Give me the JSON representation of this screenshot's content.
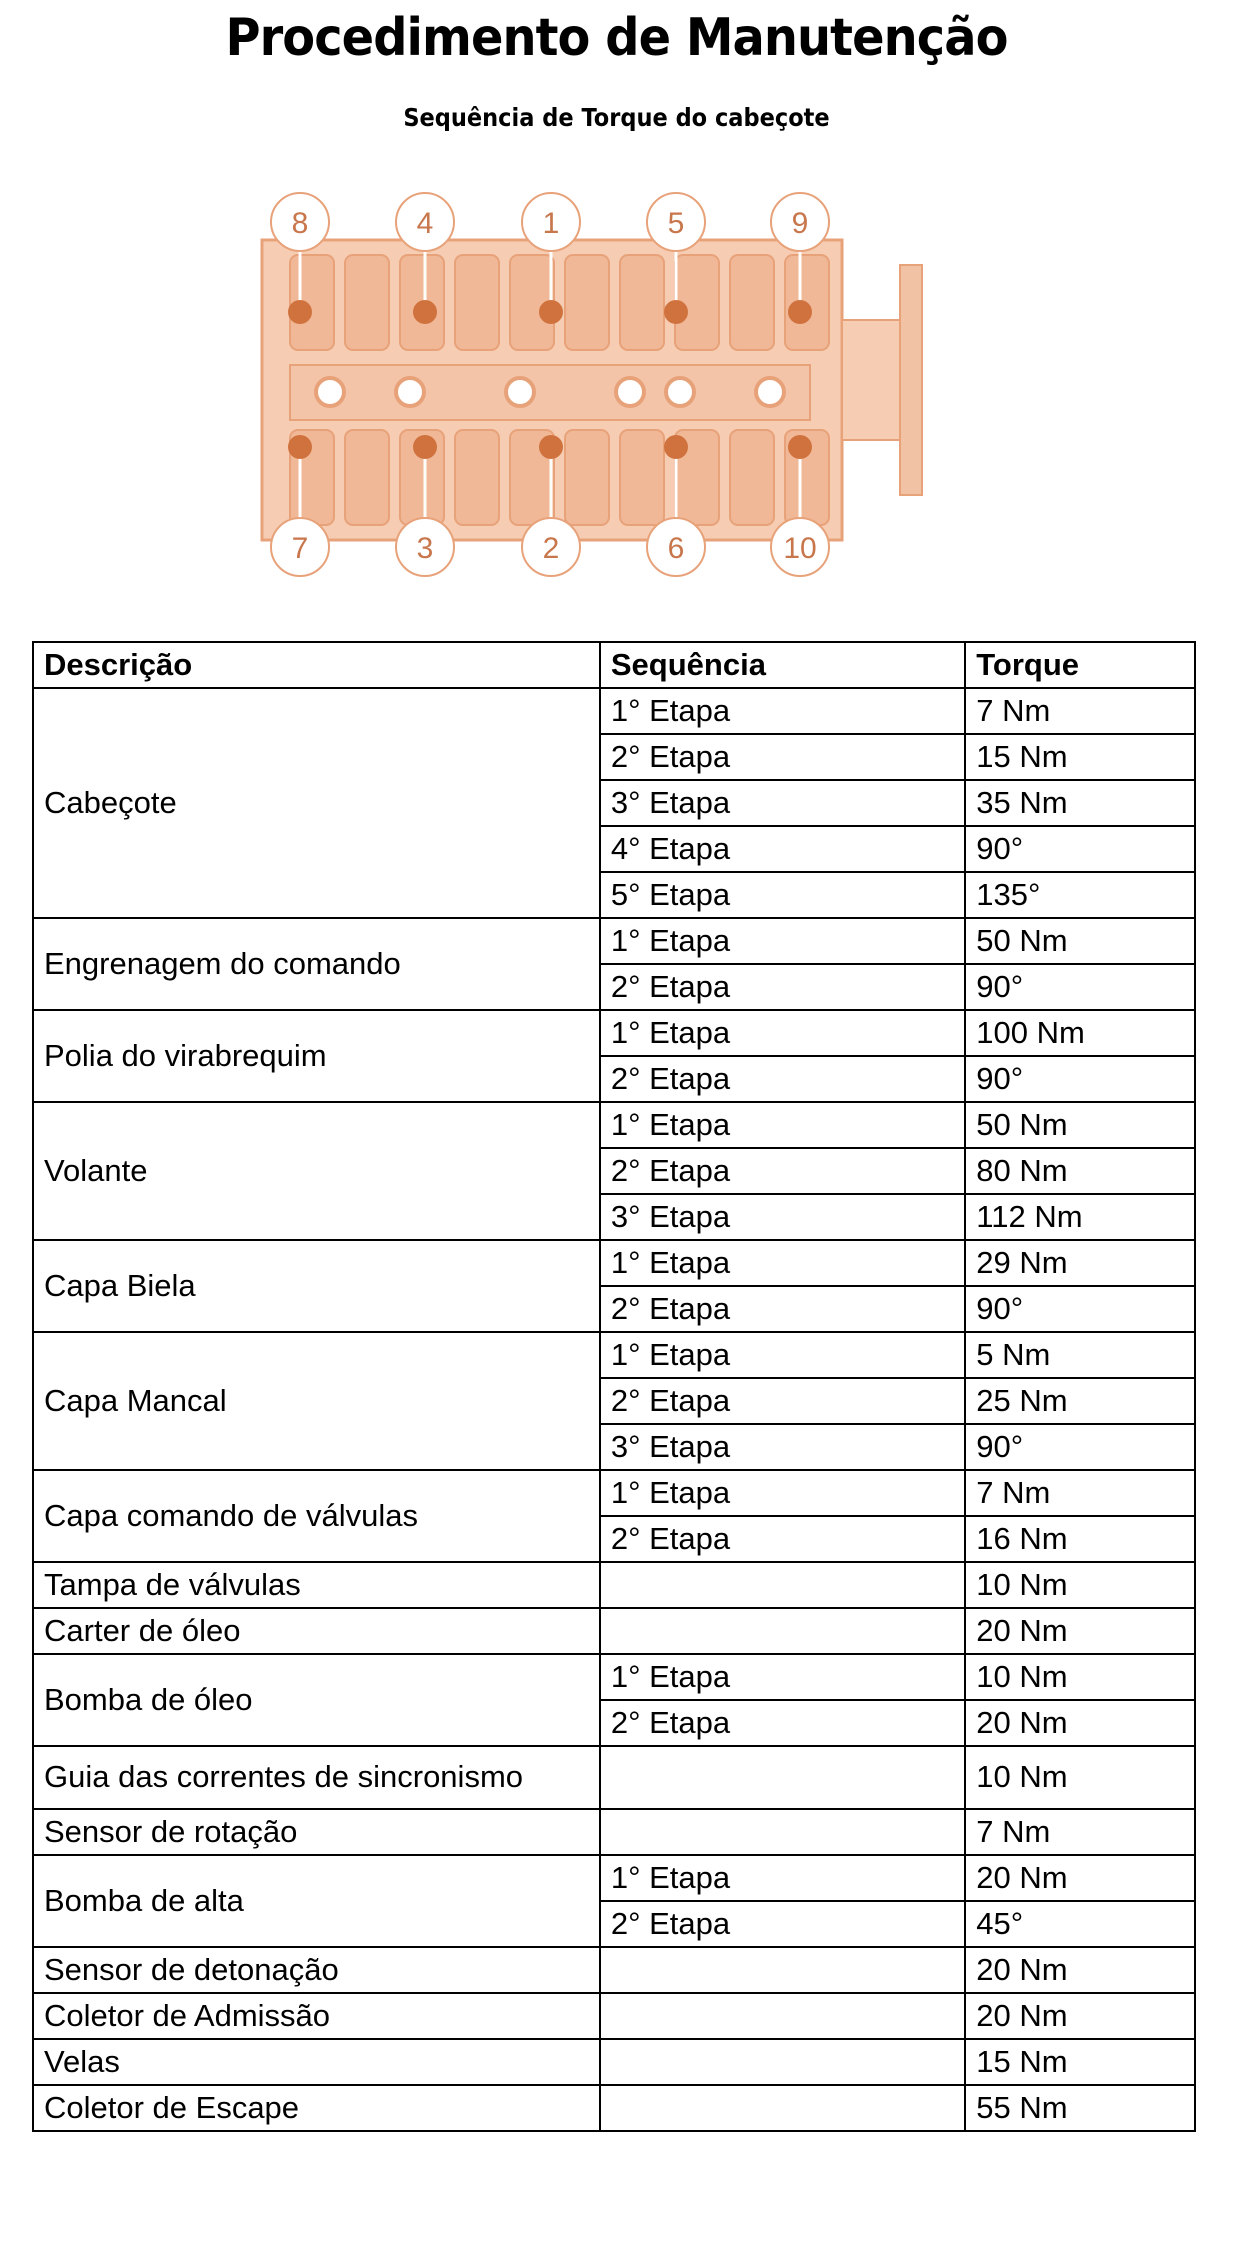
{
  "header": {
    "title": "Procedimento de Manutenção",
    "subtitle": "Sequência de Torque do cabeçote"
  },
  "diagram": {
    "top_labels": [
      "8",
      "4",
      "1",
      "5",
      "9"
    ],
    "bottom_labels": [
      "7",
      "3",
      "2",
      "6",
      "10"
    ],
    "color": "#e8a27a"
  },
  "table": {
    "headers": [
      "Descrição",
      "Sequência",
      "Torque"
    ],
    "groups": [
      {
        "desc": "Cabeçote",
        "steps": [
          [
            "1° Etapa",
            "7 Nm"
          ],
          [
            "2° Etapa",
            "15 Nm"
          ],
          [
            "3° Etapa",
            "35 Nm"
          ],
          [
            "4° Etapa",
            "90°"
          ],
          [
            "5° Etapa",
            "135°"
          ]
        ]
      },
      {
        "desc": "Engrenagem do comando",
        "steps": [
          [
            "1° Etapa",
            "50 Nm"
          ],
          [
            "2° Etapa",
            "90°"
          ]
        ]
      },
      {
        "desc": "Polia do virabrequim",
        "steps": [
          [
            "1° Etapa",
            "100 Nm"
          ],
          [
            "2° Etapa",
            "90°"
          ]
        ]
      },
      {
        "desc": "Volante",
        "steps": [
          [
            "1° Etapa",
            "50 Nm"
          ],
          [
            "2° Etapa",
            "80 Nm"
          ],
          [
            "3° Etapa",
            "112 Nm"
          ]
        ]
      },
      {
        "desc": "Capa Biela",
        "steps": [
          [
            "1° Etapa",
            "29 Nm"
          ],
          [
            "2° Etapa",
            "90°"
          ]
        ]
      },
      {
        "desc": "Capa Mancal",
        "steps": [
          [
            "1° Etapa",
            "5 Nm"
          ],
          [
            "2° Etapa",
            "25 Nm"
          ],
          [
            "3° Etapa",
            "90°"
          ]
        ]
      },
      {
        "desc": "Capa comando de válvulas",
        "steps": [
          [
            "1° Etapa",
            "7 Nm"
          ],
          [
            "2° Etapa",
            "16 Nm"
          ]
        ]
      },
      {
        "desc": "Tampa de válvulas",
        "steps": [
          [
            "",
            "10 Nm"
          ]
        ]
      },
      {
        "desc": "Carter de óleo",
        "steps": [
          [
            "",
            "20 Nm"
          ]
        ]
      },
      {
        "desc": "Bomba de óleo",
        "steps": [
          [
            "1° Etapa",
            "10 Nm"
          ],
          [
            "2° Etapa",
            "20 Nm"
          ]
        ]
      },
      {
        "desc": "Guia das correntes de sincronismo",
        "steps": [
          [
            "",
            "10 Nm"
          ]
        ],
        "tall": true
      },
      {
        "desc": "Sensor de rotação",
        "steps": [
          [
            "",
            "7 Nm"
          ]
        ]
      },
      {
        "desc": "Bomba de alta",
        "steps": [
          [
            "1° Etapa",
            "20 Nm"
          ],
          [
            "2° Etapa",
            "45°"
          ]
        ]
      },
      {
        "desc": "Sensor de detonação",
        "steps": [
          [
            "",
            "20 Nm"
          ]
        ]
      },
      {
        "desc": "Coletor de Admissão",
        "steps": [
          [
            "",
            "20 Nm"
          ]
        ]
      },
      {
        "desc": "Velas",
        "steps": [
          [
            "",
            "15 Nm"
          ]
        ]
      },
      {
        "desc": "Coletor de Escape",
        "steps": [
          [
            "",
            "55 Nm"
          ]
        ]
      }
    ]
  }
}
